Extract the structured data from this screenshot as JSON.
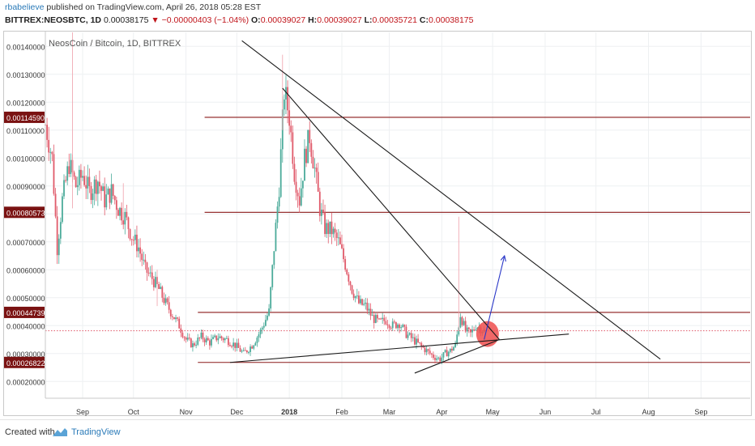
{
  "header": {
    "author": "rbabelieve",
    "published_text": " published on TradingView.com, April 26, 2018 05:28 EST",
    "symbol": "BITTREX:NEOSBTC, 1D",
    "last": "0.00038175",
    "arrow": "▼",
    "change": "−0.00000403 (−1.04%)",
    "o_label": "O:",
    "o_value": "0.00039027",
    "h_label": "H:",
    "h_value": "0.00039027",
    "l_label": "L:",
    "l_value": "0.00035721",
    "c_label": "C:",
    "c_value": "0.00038175"
  },
  "footer": {
    "created_with": "Created with",
    "brand": "TradingView",
    "logo_icon": "tradingview-logo-icon"
  },
  "colors": {
    "up": "#4bab9a",
    "down": "#e05a6a",
    "level_line": "#8b1a1a",
    "level_label_bg": "#7a1212",
    "trendline": "#1a1a1a",
    "projection": "#2a38c8",
    "highlight": "#ef4e4e",
    "current_price_line": "#e05a6a"
  },
  "chart_data": {
    "type": "candlestick",
    "title": "NeosCoin / Bitcoin, 1D, BITTREX",
    "ylim": [
      0.00014,
      0.00145
    ],
    "y_ticks": [
      "0.00020000",
      "0.00030000",
      "0.00040000",
      "0.00050000",
      "0.00060000",
      "0.00070000",
      "0.00080000",
      "0.00090000",
      "0.00100000",
      "0.00110000",
      "0.00120000",
      "0.00130000",
      "0.00140000"
    ],
    "x_range": [
      "2017-08-10",
      "2018-09-30"
    ],
    "x_ticks": [
      {
        "label": "Sep",
        "date": "2017-09-01"
      },
      {
        "label": "Oct",
        "date": "2017-10-01"
      },
      {
        "label": "Nov",
        "date": "2017-11-01"
      },
      {
        "label": "Dec",
        "date": "2017-12-01"
      },
      {
        "label": "2018",
        "date": "2018-01-01",
        "bold": true
      },
      {
        "label": "Feb",
        "date": "2018-02-01"
      },
      {
        "label": "Mar",
        "date": "2018-03-01"
      },
      {
        "label": "Apr",
        "date": "2018-04-01"
      },
      {
        "label": "May",
        "date": "2018-05-01"
      },
      {
        "label": "Jun",
        "date": "2018-06-01"
      },
      {
        "label": "Jul",
        "date": "2018-07-01"
      },
      {
        "label": "Aug",
        "date": "2018-08-01"
      },
      {
        "label": "Sep",
        "date": "2018-09-01"
      }
    ],
    "close_path": [
      [
        "2017-08-10",
        0.00112
      ],
      [
        "2017-08-14",
        0.001
      ],
      [
        "2017-08-17",
        0.00068
      ],
      [
        "2017-08-20",
        0.00085
      ],
      [
        "2017-08-24",
        0.00098
      ],
      [
        "2017-08-28",
        0.0009
      ],
      [
        "2017-09-01",
        0.00094
      ],
      [
        "2017-09-05",
        0.00088
      ],
      [
        "2017-09-10",
        0.00092
      ],
      [
        "2017-09-14",
        0.00085
      ],
      [
        "2017-09-18",
        0.00088
      ],
      [
        "2017-09-22",
        0.00082
      ],
      [
        "2017-09-26",
        0.00079
      ],
      [
        "2017-09-30",
        0.00072
      ],
      [
        "2017-10-04",
        0.00068
      ],
      [
        "2017-10-08",
        0.0006
      ],
      [
        "2017-10-12",
        0.00057
      ],
      [
        "2017-10-16",
        0.00053
      ],
      [
        "2017-10-20",
        0.00048
      ],
      [
        "2017-10-24",
        0.00044
      ],
      [
        "2017-10-28",
        0.0004
      ],
      [
        "2017-11-01",
        0.00035
      ],
      [
        "2017-11-05",
        0.00033
      ],
      [
        "2017-11-10",
        0.00036
      ],
      [
        "2017-11-15",
        0.00034
      ],
      [
        "2017-11-20",
        0.00036
      ],
      [
        "2017-11-25",
        0.00035
      ],
      [
        "2017-11-30",
        0.00033
      ],
      [
        "2017-12-05",
        0.0003
      ],
      [
        "2017-12-10",
        0.00033
      ],
      [
        "2017-12-15",
        0.00038
      ],
      [
        "2017-12-20",
        0.00045
      ],
      [
        "2017-12-23",
        0.00068
      ],
      [
        "2017-12-26",
        0.0009
      ],
      [
        "2017-12-29",
        0.00124
      ],
      [
        "2018-01-01",
        0.00115
      ],
      [
        "2018-01-04",
        0.00095
      ],
      [
        "2018-01-07",
        0.00085
      ],
      [
        "2018-01-10",
        0.001
      ],
      [
        "2018-01-13",
        0.00108
      ],
      [
        "2018-01-16",
        0.00096
      ],
      [
        "2018-01-19",
        0.00082
      ],
      [
        "2018-01-22",
        0.00075
      ],
      [
        "2018-01-26",
        0.00074
      ],
      [
        "2018-01-30",
        0.0007
      ],
      [
        "2018-02-03",
        0.00062
      ],
      [
        "2018-02-07",
        0.00053
      ],
      [
        "2018-02-11",
        0.00048
      ],
      [
        "2018-02-15",
        0.00047
      ],
      [
        "2018-02-19",
        0.00043
      ],
      [
        "2018-02-23",
        0.00041
      ],
      [
        "2018-02-27",
        0.00042
      ],
      [
        "2018-03-03",
        0.0004
      ],
      [
        "2018-03-07",
        0.00041
      ],
      [
        "2018-03-11",
        0.00037
      ],
      [
        "2018-03-15",
        0.00035
      ],
      [
        "2018-03-19",
        0.00033
      ],
      [
        "2018-03-23",
        0.00031
      ],
      [
        "2018-03-27",
        0.00029
      ],
      [
        "2018-03-31",
        0.00028
      ],
      [
        "2018-04-03",
        0.0003
      ],
      [
        "2018-04-06",
        0.00031
      ],
      [
        "2018-04-09",
        0.00033
      ],
      [
        "2018-04-12",
        0.00044
      ],
      [
        "2018-04-15",
        0.00038
      ],
      [
        "2018-04-18",
        0.00037
      ],
      [
        "2018-04-21",
        0.0004
      ],
      [
        "2018-04-24",
        0.00039
      ],
      [
        "2018-04-26",
        0.000382
      ]
    ],
    "spikes": [
      {
        "date": "2017-08-26",
        "high": 0.00145,
        "low": 0.00082
      },
      {
        "date": "2017-09-25",
        "high": 0.00091,
        "low": 0.00078
      },
      {
        "date": "2017-10-15",
        "high": 0.0006,
        "low": 0.00047
      },
      {
        "date": "2017-12-28",
        "high": 0.00137,
        "low": 0.0011
      },
      {
        "date": "2018-04-11",
        "high": 0.00079,
        "low": 0.00038
      }
    ],
    "horizontal_levels": [
      {
        "value": 0.0011459,
        "label": "0.00114590",
        "from": "2017-11-12"
      },
      {
        "value": 0.00080573,
        "label": "0.00080573",
        "from": "2017-11-12"
      },
      {
        "value": 0.00044739,
        "label": "0.00044739",
        "from": "2017-11-08"
      },
      {
        "value": 0.00026822,
        "label": "0.00026822",
        "from": "2017-11-08"
      }
    ],
    "current_price": 0.00038175,
    "trendlines": [
      {
        "from": [
          "2017-12-04",
          0.00142
        ],
        "to": [
          "2018-08-08",
          0.00028
        ],
        "color": "trendline"
      },
      {
        "from": [
          "2017-12-28",
          0.00125
        ],
        "to": [
          "2018-05-05",
          0.00035
        ],
        "color": "trendline"
      },
      {
        "from": [
          "2017-11-27",
          0.00026822
        ],
        "to": [
          "2018-06-15",
          0.00037
        ],
        "color": "trendline"
      },
      {
        "from": [
          "2018-03-16",
          0.00023
        ],
        "to": [
          "2018-05-05",
          0.00035
        ],
        "color": "trendline"
      },
      {
        "from": [
          "2018-04-26",
          0.00035
        ],
        "to": [
          "2018-05-08",
          0.00065
        ],
        "color": "projection",
        "arrow": true
      }
    ],
    "highlight_circle": {
      "date": "2018-04-28",
      "value": 0.00037
    }
  }
}
